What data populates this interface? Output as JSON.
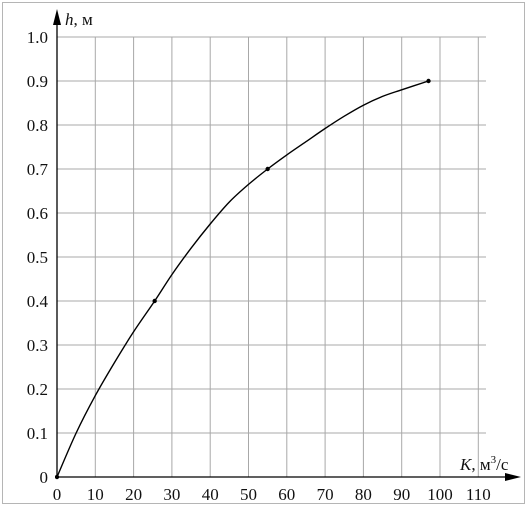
{
  "chart_data": {
    "type": "line",
    "title": "",
    "xlabel": {
      "symbol": "K",
      "unit": ", м",
      "unit_sup": "3",
      "unit_tail": "/с"
    },
    "ylabel": {
      "symbol": "h",
      "unit": ", м"
    },
    "xlim": [
      0,
      110
    ],
    "ylim": [
      0,
      1.0
    ],
    "x_ticks": [
      0,
      10,
      20,
      30,
      40,
      50,
      60,
      70,
      80,
      90,
      100,
      110
    ],
    "x_tick_labels": [
      "0",
      "10",
      "20",
      "30",
      "40",
      "50",
      "60",
      "70",
      "80",
      "90",
      "100",
      "110"
    ],
    "y_ticks": [
      0,
      0.1,
      0.2,
      0.3,
      0.4,
      0.5,
      0.6,
      0.7,
      0.8,
      0.9,
      1.0
    ],
    "y_tick_labels": [
      "0",
      "0.1",
      "0.2",
      "0.3",
      "0.4",
      "0.5",
      "0.6",
      "0.7",
      "0.8",
      "0.9",
      "1.0"
    ],
    "grid": true,
    "series": [
      {
        "color": "#000000",
        "curve": [
          [
            0,
            0
          ],
          [
            5,
            0.1
          ],
          [
            10,
            0.185
          ],
          [
            15,
            0.26
          ],
          [
            20,
            0.33
          ],
          [
            25.5,
            0.4
          ],
          [
            30,
            0.46
          ],
          [
            35,
            0.52
          ],
          [
            40,
            0.575
          ],
          [
            45,
            0.625
          ],
          [
            50,
            0.665
          ],
          [
            55,
            0.7
          ],
          [
            60,
            0.732
          ],
          [
            65,
            0.762
          ],
          [
            70,
            0.792
          ],
          [
            75,
            0.82
          ],
          [
            80,
            0.845
          ],
          [
            85,
            0.865
          ],
          [
            90,
            0.88
          ],
          [
            97,
            0.9
          ]
        ],
        "points": [
          [
            0,
            0
          ],
          [
            25.5,
            0.4
          ],
          [
            55,
            0.7
          ],
          [
            97,
            0.9
          ]
        ]
      }
    ]
  }
}
